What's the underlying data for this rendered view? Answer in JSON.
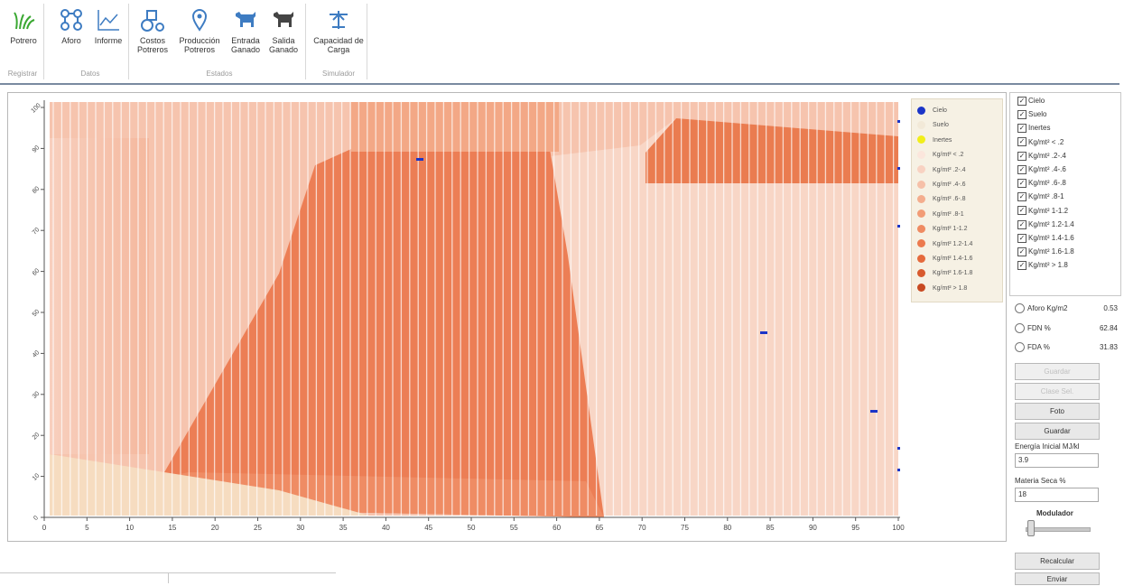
{
  "ribbon": {
    "groups": [
      {
        "label": "Registrar",
        "buttons": [
          {
            "label": "Potrero",
            "icon": "grass-icon"
          }
        ]
      },
      {
        "label": "Datos",
        "buttons": [
          {
            "label": "Aforo",
            "icon": "network-icon"
          },
          {
            "label": "Informe",
            "icon": "line-chart-icon"
          }
        ]
      },
      {
        "label": "Estados",
        "buttons": [
          {
            "label": "Costos Potreros",
            "icon": "tractor-icon"
          },
          {
            "label": "Producción Potreros",
            "icon": "location-pin-icon"
          },
          {
            "label": "Entrada Ganado",
            "icon": "cow-in-icon"
          },
          {
            "label": "Salida Ganado",
            "icon": "cow-out-icon"
          }
        ]
      },
      {
        "label": "Simulador",
        "buttons": [
          {
            "label": "Capacidad de Carga",
            "icon": "simulator-icon"
          }
        ]
      }
    ]
  },
  "plot": {
    "x_ticks": [
      "0",
      "5",
      "10",
      "15",
      "20",
      "25",
      "30",
      "35",
      "40",
      "45",
      "50",
      "55",
      "60",
      "65",
      "70",
      "75",
      "80",
      "85",
      "90",
      "95",
      "100"
    ],
    "y_ticks": [
      "0",
      "10",
      "20",
      "30",
      "40",
      "50",
      "60",
      "70",
      "80",
      "90",
      "100"
    ],
    "legend": [
      {
        "label": "Cielo",
        "color": "#1b35c8"
      },
      {
        "label": "Suelo",
        "color": "#f2e9d8"
      },
      {
        "label": "Inertes",
        "color": "#f1ee1a"
      },
      {
        "label": "Kg/mt² < .2",
        "color": "#fbe6dc"
      },
      {
        "label": "Kg/mt² .2-.4",
        "color": "#f8d2c2"
      },
      {
        "label": "Kg/mt² .4-.6",
        "color": "#f6c0a8"
      },
      {
        "label": "Kg/mt² .6-.8",
        "color": "#f4ad8e"
      },
      {
        "label": "Kg/mt² .8-1",
        "color": "#f29c76"
      },
      {
        "label": "Kg/mt² 1-1.2",
        "color": "#ef8b62"
      },
      {
        "label": "Kg/mt² 1.2-1.4",
        "color": "#ec7a4e"
      },
      {
        "label": "Kg/mt² 1.4-1.6",
        "color": "#e56a3c"
      },
      {
        "label": "Kg/mt² 1.6-1.8",
        "color": "#d85a2e"
      },
      {
        "label": "Kg/mt² > 1.8",
        "color": "#c84a22"
      }
    ]
  },
  "panel": {
    "checkboxes": [
      "Cielo",
      "Suelo",
      "Inertes",
      "Kg/mt² < .2",
      "Kg/mt² .2-.4",
      "Kg/mt² .4-.6",
      "Kg/mt² .6-.8",
      "Kg/mt² .8-1",
      "Kg/mt² 1-1.2",
      "Kg/mt² 1.2-1.4",
      "Kg/mt² 1.4-1.6",
      "Kg/mt² 1.6-1.8",
      "Kg/mt² > 1.8"
    ],
    "radios": [
      {
        "label": "Aforo Kg/m2",
        "value": "0.53"
      },
      {
        "label": "FDN %",
        "value": "62.84"
      },
      {
        "label": "FDA %",
        "value": "31.83"
      }
    ],
    "buttons_disabled": [
      "Guardar",
      "Clase Sel."
    ],
    "foto_label": "Foto",
    "guardar_label": "Guardar",
    "energia_label": "Energía Inicial MJ/kl",
    "energia_value": "3.9",
    "materia_label": "Materia Seca %",
    "materia_value": "18",
    "modulador_label": "Modulador",
    "recalcular_label": "Recalcular",
    "enviar_label": "Enviar"
  }
}
